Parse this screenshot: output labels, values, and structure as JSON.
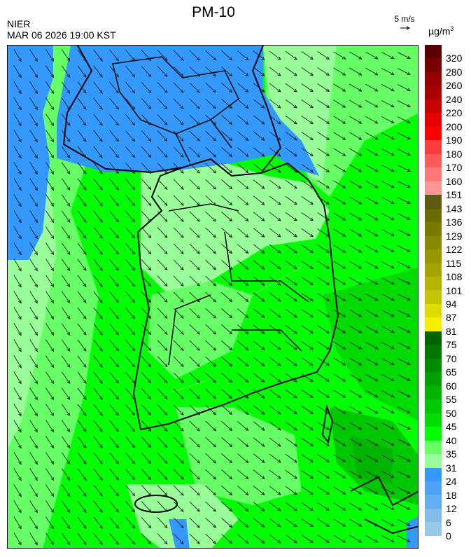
{
  "header": {
    "title": "PM-10",
    "organization": "NIER",
    "timestamp": "MAR 06 2026 19:00 KST",
    "wind_reference": "5 m/s",
    "unit_base": "µg/m",
    "unit_exp": "3"
  },
  "legend": {
    "labels": [
      "320",
      "280",
      "260",
      "240",
      "220",
      "200",
      "190",
      "180",
      "170",
      "160",
      "151",
      "143",
      "136",
      "129",
      "122",
      "115",
      "108",
      "101",
      "94",
      "87",
      "81",
      "75",
      "70",
      "65",
      "60",
      "55",
      "50",
      "45",
      "40",
      "35",
      "31",
      "24",
      "18",
      "12",
      "6",
      "0"
    ],
    "colors": [
      "#5a0000",
      "#780000",
      "#960000",
      "#aa0000",
      "#c80000",
      "#e60000",
      "#ff0000",
      "#ff3c3c",
      "#ff5a5a",
      "#ff7878",
      "#ff9696",
      "#5e5a10",
      "#6a6a00",
      "#7a7a00",
      "#888800",
      "#969600",
      "#a4a400",
      "#b4b400",
      "#c4c400",
      "#e0dc00",
      "#f4f000",
      "#006400",
      "#007800",
      "#008c00",
      "#00a000",
      "#00b400",
      "#00c800",
      "#00dc00",
      "#00ff00",
      "#66ff66",
      "#99ff99",
      "#3399ff",
      "#4da3f5",
      "#62aef0",
      "#82bde8",
      "#98c9e6"
    ]
  },
  "map": {
    "field": "PM-10 concentration with wind vectors",
    "region_colors": {
      "low_blue": "#3399ff",
      "light_green": "#99ff99",
      "green": "#66ff66",
      "bright_green": "#00ff00",
      "mid_green": "#00dc00",
      "dark_green": "#00c800"
    }
  }
}
